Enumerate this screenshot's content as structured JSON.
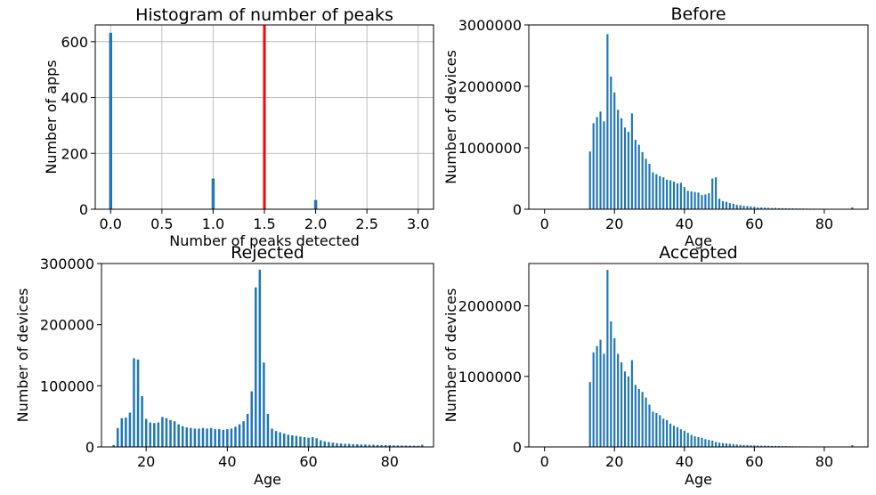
{
  "chart_data": [
    {
      "id": "peaks",
      "type": "bar",
      "title": "Histogram of number of peaks",
      "xlabel": "Number of peaks detected",
      "ylabel": "Number of apps",
      "xlim": [
        -0.15,
        3.15
      ],
      "ylim": [
        0,
        660
      ],
      "xticks": [
        0,
        0.5,
        1,
        1.5,
        2,
        2.5,
        3
      ],
      "xtick_labels": [
        "0.0",
        "0.5",
        "1.0",
        "1.5",
        "2.0",
        "2.5",
        "3.0"
      ],
      "yticks": [
        0,
        200,
        400,
        600
      ],
      "ytick_labels": [
        "0",
        "200",
        "400",
        "600"
      ],
      "grid": true,
      "bar_color": "#1f77b4",
      "bar_width": 0.03,
      "x": [
        0,
        1,
        2
      ],
      "values": [
        632,
        110,
        33
      ],
      "threshold_line": {
        "x": 1.5,
        "color": "#ff0000"
      }
    },
    {
      "id": "before",
      "type": "bar",
      "title": "Before",
      "xlabel": "Age",
      "ylabel": "Number of devices",
      "xlim": [
        -4.5,
        92.5
      ],
      "ylim": [
        0,
        3000000
      ],
      "xticks": [
        0,
        20,
        40,
        60,
        80
      ],
      "xtick_labels": [
        "0",
        "20",
        "40",
        "60",
        "80"
      ],
      "yticks": [
        0,
        1000000,
        2000000,
        3000000
      ],
      "ytick_labels": [
        "0",
        "1000000",
        "2000000",
        "3000000"
      ],
      "grid": false,
      "bar_color": "#1f77b4",
      "bar_width": 0.55,
      "x": [
        13,
        14,
        15,
        16,
        17,
        18,
        19,
        20,
        21,
        22,
        23,
        24,
        25,
        26,
        27,
        28,
        29,
        30,
        31,
        32,
        33,
        34,
        35,
        36,
        37,
        38,
        39,
        40,
        41,
        42,
        43,
        44,
        45,
        46,
        47,
        48,
        49,
        50,
        51,
        52,
        53,
        54,
        55,
        56,
        57,
        58,
        59,
        60,
        61,
        62,
        63,
        64,
        65,
        66,
        67,
        68,
        69,
        70,
        71,
        72,
        73,
        74,
        75,
        76,
        77,
        78,
        79,
        80,
        81,
        82,
        83,
        84,
        85,
        86,
        87,
        88
      ],
      "values": [
        940000,
        1400000,
        1500000,
        1590000,
        1430000,
        2850000,
        2160000,
        1900000,
        1620000,
        1480000,
        1330000,
        1260000,
        1560000,
        1130000,
        1050000,
        930000,
        820000,
        740000,
        600000,
        570000,
        540000,
        520000,
        480000,
        470000,
        450000,
        420000,
        430000,
        360000,
        300000,
        290000,
        280000,
        270000,
        230000,
        240000,
        260000,
        500000,
        520000,
        170000,
        130000,
        120000,
        100000,
        90000,
        70000,
        65000,
        55000,
        50000,
        45000,
        40000,
        30000,
        28000,
        26000,
        24000,
        20000,
        22000,
        18000,
        17000,
        16000,
        15000,
        14000,
        13000,
        12000,
        11000,
        10000,
        9000,
        9000,
        8000,
        8000,
        7000,
        7000,
        6000,
        6000,
        5000,
        5000,
        5000,
        4000,
        30000
      ]
    },
    {
      "id": "rejected",
      "type": "bar",
      "title": "Rejected",
      "xlabel": "Age",
      "ylabel": "Number of devices",
      "xlim": [
        9.0,
        90.8
      ],
      "ylim": [
        0,
        300000
      ],
      "xticks": [
        20,
        40,
        60,
        80
      ],
      "xtick_labels": [
        "20",
        "40",
        "60",
        "80"
      ],
      "yticks": [
        0,
        100000,
        200000,
        300000
      ],
      "ytick_labels": [
        "0",
        "100000",
        "200000",
        "300000"
      ],
      "grid": false,
      "bar_color": "#1f77b4",
      "bar_width": 0.55,
      "x": [
        12,
        13,
        14,
        15,
        16,
        17,
        18,
        19,
        20,
        21,
        22,
        23,
        24,
        25,
        26,
        27,
        28,
        29,
        30,
        31,
        32,
        33,
        34,
        35,
        36,
        37,
        38,
        39,
        40,
        41,
        42,
        43,
        44,
        45,
        46,
        47,
        48,
        49,
        50,
        51,
        52,
        53,
        54,
        55,
        56,
        57,
        58,
        59,
        60,
        61,
        62,
        63,
        64,
        65,
        66,
        67,
        68,
        69,
        70,
        71,
        72,
        73,
        74,
        75,
        76,
        77,
        78,
        79,
        80,
        81,
        82,
        83,
        84,
        85,
        86,
        87,
        88
      ],
      "values": [
        3000,
        31000,
        47000,
        48000,
        56000,
        145000,
        143000,
        83000,
        46000,
        40000,
        39000,
        40000,
        49000,
        47000,
        44000,
        42000,
        37000,
        34000,
        32000,
        31000,
        30000,
        30000,
        31000,
        30000,
        31000,
        29000,
        29000,
        28000,
        29000,
        30000,
        33000,
        37000,
        42000,
        54000,
        91000,
        261000,
        290000,
        138000,
        54000,
        30000,
        26000,
        24000,
        22000,
        20000,
        19000,
        18000,
        17000,
        16000,
        15000,
        16000,
        14000,
        11000,
        9000,
        8000,
        7000,
        6000,
        5500,
        5000,
        5000,
        4500,
        4500,
        4000,
        4000,
        3500,
        3500,
        3200,
        3000,
        3000,
        2800,
        2600,
        2500,
        2400,
        2300,
        2200,
        2100,
        2000,
        3500
      ]
    },
    {
      "id": "accepted",
      "type": "bar",
      "title": "Accepted",
      "xlabel": "Age",
      "ylabel": "Number of devices",
      "xlim": [
        -4.5,
        92.5
      ],
      "ylim": [
        0,
        2600000
      ],
      "xticks": [
        0,
        20,
        40,
        60,
        80
      ],
      "xtick_labels": [
        "0",
        "20",
        "40",
        "60",
        "80"
      ],
      "yticks": [
        0,
        1000000,
        2000000
      ],
      "ytick_labels": [
        "0",
        "1000000",
        "2000000"
      ],
      "grid": false,
      "bar_color": "#1f77b4",
      "bar_width": 0.55,
      "x": [
        13,
        14,
        15,
        16,
        17,
        18,
        19,
        20,
        21,
        22,
        23,
        24,
        25,
        26,
        27,
        28,
        29,
        30,
        31,
        32,
        33,
        34,
        35,
        36,
        37,
        38,
        39,
        40,
        41,
        42,
        43,
        44,
        45,
        46,
        47,
        48,
        49,
        50,
        51,
        52,
        53,
        54,
        55,
        56,
        57,
        58,
        59,
        60,
        61,
        62,
        63,
        64,
        65,
        66,
        67,
        68,
        69,
        70,
        71,
        72,
        73,
        74,
        75,
        76,
        77,
        78,
        79,
        80,
        81,
        82,
        83,
        84,
        85,
        86,
        87,
        88
      ],
      "values": [
        920000,
        1340000,
        1430000,
        1520000,
        1320000,
        2510000,
        1780000,
        1540000,
        1320000,
        1200000,
        1070000,
        1000000,
        1230000,
        880000,
        820000,
        780000,
        700000,
        600000,
        500000,
        480000,
        450000,
        400000,
        380000,
        330000,
        300000,
        280000,
        250000,
        230000,
        200000,
        170000,
        150000,
        140000,
        130000,
        110000,
        100000,
        90000,
        70000,
        60000,
        55000,
        50000,
        45000,
        40000,
        35000,
        30000,
        28000,
        26000,
        24000,
        22000,
        20000,
        18000,
        17000,
        16000,
        15000,
        14000,
        13000,
        12000,
        11000,
        10000,
        9000,
        8000,
        8000,
        7000,
        7000,
        6000,
        6000,
        5000,
        5000,
        5000,
        4000,
        4000,
        4000,
        3500,
        3500,
        3000,
        3000,
        25000
      ]
    }
  ]
}
